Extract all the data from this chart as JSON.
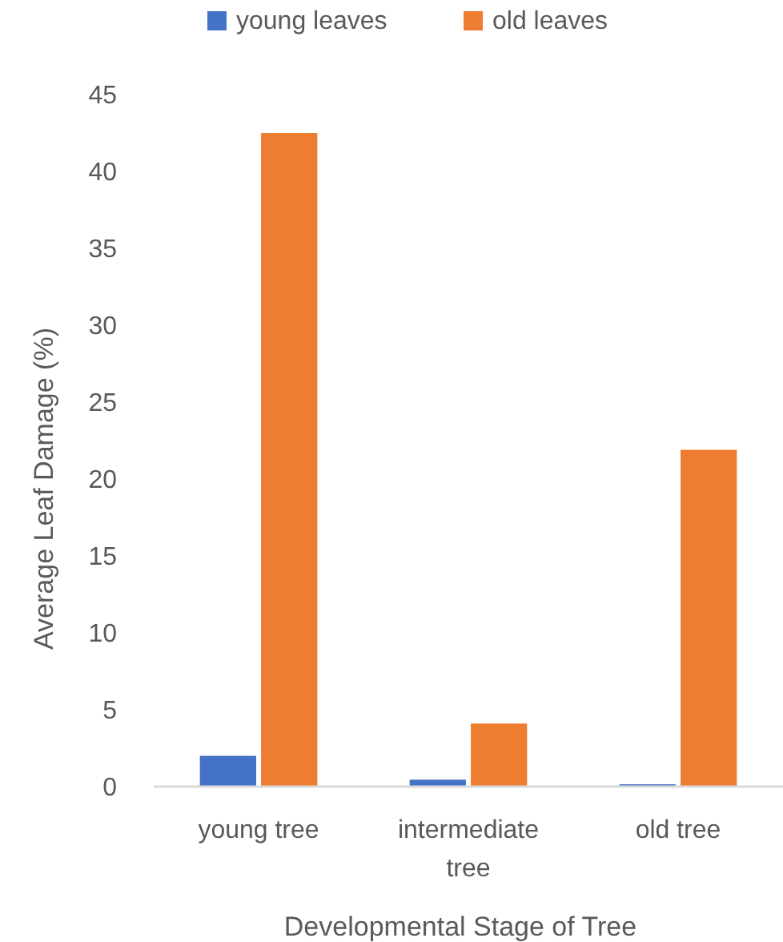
{
  "chart_data": {
    "type": "bar",
    "categories": [
      "young tree",
      "intermediate tree",
      "old tree"
    ],
    "series": [
      {
        "name": "young leaves",
        "color": "#4472c4",
        "values": [
          2.0,
          0.45,
          0.15
        ]
      },
      {
        "name": "old leaves",
        "color": "#ed7d31",
        "values": [
          42.5,
          4.1,
          21.9
        ]
      }
    ],
    "xlabel": "Developmental Stage of Tree",
    "ylabel": "Average Leaf Damage (%)",
    "ylim": [
      0,
      45
    ],
    "yticks": [
      0,
      5,
      10,
      15,
      20,
      25,
      30,
      35,
      40,
      45
    ],
    "grid": false,
    "legend": "top"
  }
}
